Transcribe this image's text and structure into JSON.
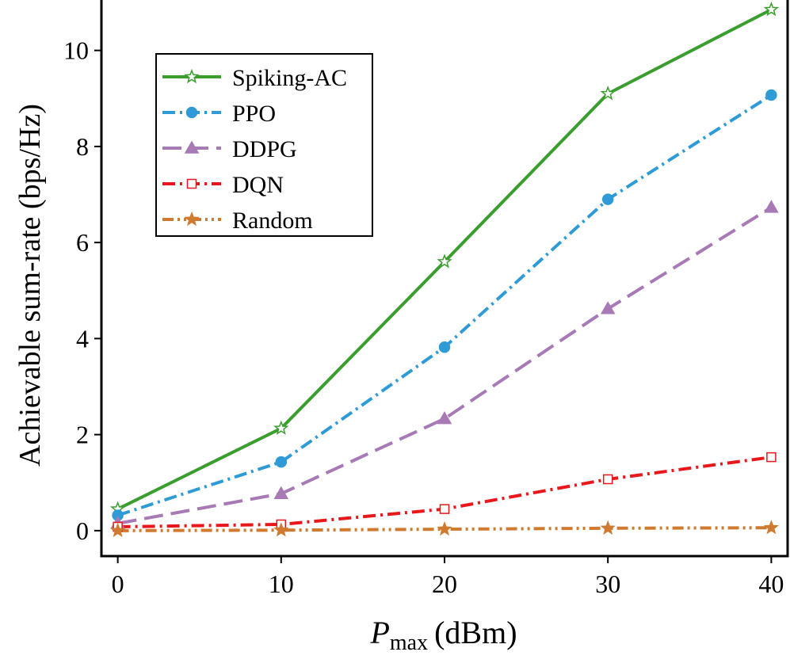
{
  "chart_data": {
    "type": "line",
    "y_label": "Achievable sum-rate (bps/Hz)",
    "x_label": {
      "symbol": "P",
      "subscript": "max",
      "unit": "(dBm)"
    },
    "x": [
      0,
      10,
      20,
      30,
      40
    ],
    "xlim": [
      -1,
      41
    ],
    "xticks": [
      0,
      10,
      20,
      30,
      40
    ],
    "ylim": [
      -0.53,
      11.05
    ],
    "yticks": [
      0,
      2,
      4,
      6,
      8,
      10
    ],
    "legend": "upper left",
    "series": [
      {
        "name": "Spiking-AC",
        "color": "#3a9e2e",
        "marker": "star",
        "filled": false,
        "linestyle": "solid",
        "values": [
          0.45,
          2.13,
          5.6,
          9.1,
          10.85
        ]
      },
      {
        "name": "PPO",
        "color": "#2e9bd6",
        "marker": "circle",
        "filled": true,
        "linestyle": "dashdot",
        "values": [
          0.32,
          1.43,
          3.82,
          6.9,
          9.07
        ]
      },
      {
        "name": "DDPG",
        "color": "#a77ab6",
        "marker": "triangle",
        "filled": true,
        "linestyle": "dashed",
        "values": [
          0.15,
          0.77,
          2.33,
          4.62,
          6.73
        ]
      },
      {
        "name": "DQN",
        "color": "#e8171b",
        "marker": "square",
        "filled": false,
        "linestyle": "dashdot",
        "values": [
          0.08,
          0.13,
          0.45,
          1.07,
          1.53
        ]
      },
      {
        "name": "Random",
        "color": "#d07a30",
        "marker": "star",
        "filled": true,
        "linestyle": "dashdotdot",
        "values": [
          0.0,
          0.01,
          0.03,
          0.05,
          0.06
        ]
      }
    ]
  }
}
